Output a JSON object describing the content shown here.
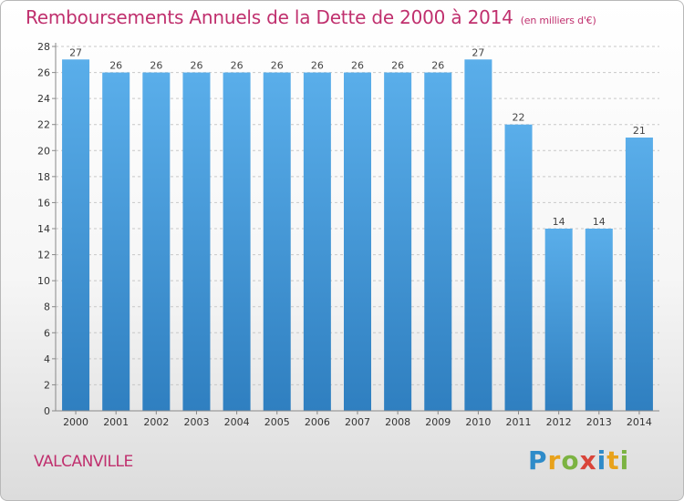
{
  "header": {
    "title": "Remboursements Annuels de la Dette de 2000 à 2014",
    "unit": "(en milliers d'€)"
  },
  "footer": {
    "town": "VALCANVILLE",
    "logo": {
      "letters": [
        "P",
        "r",
        "o",
        "x",
        "i",
        "t",
        "i"
      ],
      "colors": [
        "#2e8bc9",
        "#e8a21b",
        "#7cb342",
        "#d9453a",
        "#2e8bc9",
        "#e8a21b",
        "#7cb342"
      ]
    }
  },
  "chart_data": {
    "type": "bar",
    "title": "Remboursements Annuels de la Dette de 2000 à 2014",
    "xlabel": "",
    "ylabel": "",
    "categories": [
      "2000",
      "2001",
      "2002",
      "2003",
      "2004",
      "2005",
      "2006",
      "2007",
      "2008",
      "2009",
      "2010",
      "2011",
      "2012",
      "2013",
      "2014"
    ],
    "values": [
      27,
      26,
      26,
      26,
      26,
      26,
      26,
      26,
      26,
      26,
      27,
      22,
      14,
      14,
      21
    ],
    "ylim": [
      0,
      28
    ],
    "yticks": [
      0,
      2,
      4,
      6,
      8,
      10,
      12,
      14,
      16,
      18,
      20,
      22,
      24,
      26,
      28
    ],
    "grid": true,
    "colors": {
      "bar_top": "#5aaeea",
      "bar_bottom": "#2f7fc0",
      "grid": "#c8c8c8",
      "axis": "#888888"
    }
  }
}
